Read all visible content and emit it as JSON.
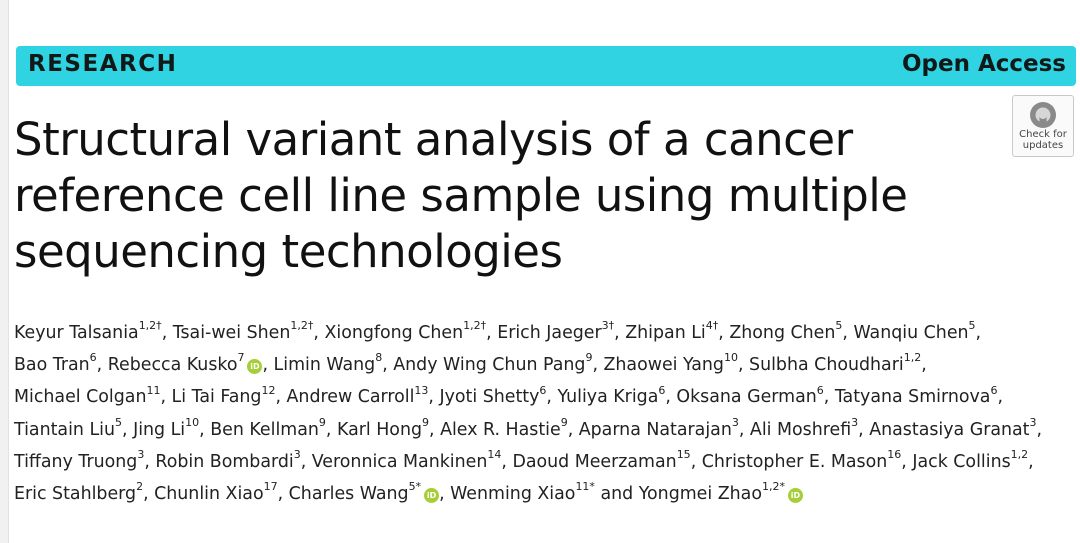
{
  "banner": {
    "left": "RESEARCH",
    "right": "Open Access"
  },
  "title": "Structural variant analysis of a cancer reference cell line sample using multiple sequencing technologies",
  "update_badge": {
    "line1": "Check for",
    "line2": "updates"
  },
  "orcid_label": "iD",
  "authors": [
    {
      "name": "Keyur Talsania",
      "sup": "1,2†"
    },
    {
      "name": "Tsai-wei Shen",
      "sup": "1,2†"
    },
    {
      "name": "Xiongfong Chen",
      "sup": "1,2†"
    },
    {
      "name": "Erich Jaeger",
      "sup": "3†"
    },
    {
      "name": "Zhipan Li",
      "sup": "4†"
    },
    {
      "name": "Zhong Chen",
      "sup": "5"
    },
    {
      "name": "Wanqiu Chen",
      "sup": "5"
    },
    {
      "name": "Bao Tran",
      "sup": "6"
    },
    {
      "name": "Rebecca Kusko",
      "sup": "7",
      "orcid": true
    },
    {
      "name": "Limin Wang",
      "sup": "8"
    },
    {
      "name": "Andy Wing Chun Pang",
      "sup": "9"
    },
    {
      "name": "Zhaowei Yang",
      "sup": "10"
    },
    {
      "name": "Sulbha Choudhari",
      "sup": "1,2"
    },
    {
      "name": "Michael Colgan",
      "sup": "11"
    },
    {
      "name": "Li Tai Fang",
      "sup": "12"
    },
    {
      "name": "Andrew Carroll",
      "sup": "13"
    },
    {
      "name": "Jyoti Shetty",
      "sup": "6"
    },
    {
      "name": "Yuliya Kriga",
      "sup": "6"
    },
    {
      "name": "Oksana German",
      "sup": "6"
    },
    {
      "name": "Tatyana Smirnova",
      "sup": "6"
    },
    {
      "name": "Tiantain Liu",
      "sup": "5"
    },
    {
      "name": "Jing Li",
      "sup": "10"
    },
    {
      "name": "Ben Kellman",
      "sup": "9"
    },
    {
      "name": "Karl Hong",
      "sup": "9"
    },
    {
      "name": "Alex R. Hastie",
      "sup": "9"
    },
    {
      "name": "Aparna Natarajan",
      "sup": "3"
    },
    {
      "name": "Ali Moshrefi",
      "sup": "3"
    },
    {
      "name": "Anastasiya Granat",
      "sup": "3"
    },
    {
      "name": "Tiffany Truong",
      "sup": "3"
    },
    {
      "name": "Robin Bombardi",
      "sup": "3"
    },
    {
      "name": "Veronnica Mankinen",
      "sup": "14"
    },
    {
      "name": "Daoud Meerzaman",
      "sup": "15"
    },
    {
      "name": "Christopher E. Mason",
      "sup": "16"
    },
    {
      "name": "Jack Collins",
      "sup": "1,2"
    },
    {
      "name": "Eric Stahlberg",
      "sup": "2"
    },
    {
      "name": "Chunlin Xiao",
      "sup": "17"
    },
    {
      "name": "Charles Wang",
      "sup": "5*",
      "orcid": true
    },
    {
      "name": "Wenming Xiao",
      "sup": "11*"
    },
    {
      "name": "Yongmei Zhao",
      "sup": "1,2*",
      "orcid": true
    }
  ],
  "separators": {
    "comma": ", ",
    "final": " and "
  }
}
